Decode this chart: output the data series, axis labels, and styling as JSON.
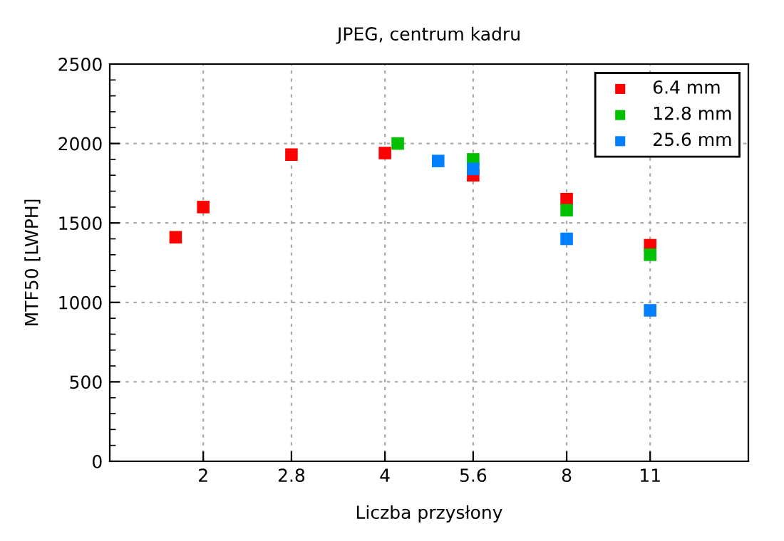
{
  "chart_data": {
    "type": "scatter",
    "title": "JPEG, centrum kadru",
    "xlabel": "Liczba przysłony",
    "ylabel": "MTF50 [LWPH]",
    "log": "x",
    "xlim": [
      1.4,
      16
    ],
    "xticks": [
      2,
      2.8,
      4,
      5.6,
      8,
      11
    ],
    "ylim": [
      0,
      2500
    ],
    "yticks": [
      0,
      500,
      1000,
      1500,
      2000,
      2500
    ],
    "grid": true,
    "legend": "top right",
    "marker": "square",
    "series": [
      {
        "name": "6.4 mm",
        "color": "#ff0000",
        "x": [
          1.8,
          2,
          2.8,
          4,
          5.6,
          8,
          11
        ],
        "values": [
          1410,
          1600,
          1930,
          1940,
          1800,
          1650,
          1360
        ]
      },
      {
        "name": "12.8 mm",
        "color": "#00c000",
        "x": [
          4.2,
          5.6,
          8,
          11
        ],
        "values": [
          2000,
          1900,
          1580,
          1300
        ]
      },
      {
        "name": "25.6 mm",
        "color": "#0080ff",
        "x": [
          4.9,
          5.6,
          8,
          11
        ],
        "values": [
          1890,
          1840,
          1400,
          950
        ]
      }
    ]
  }
}
